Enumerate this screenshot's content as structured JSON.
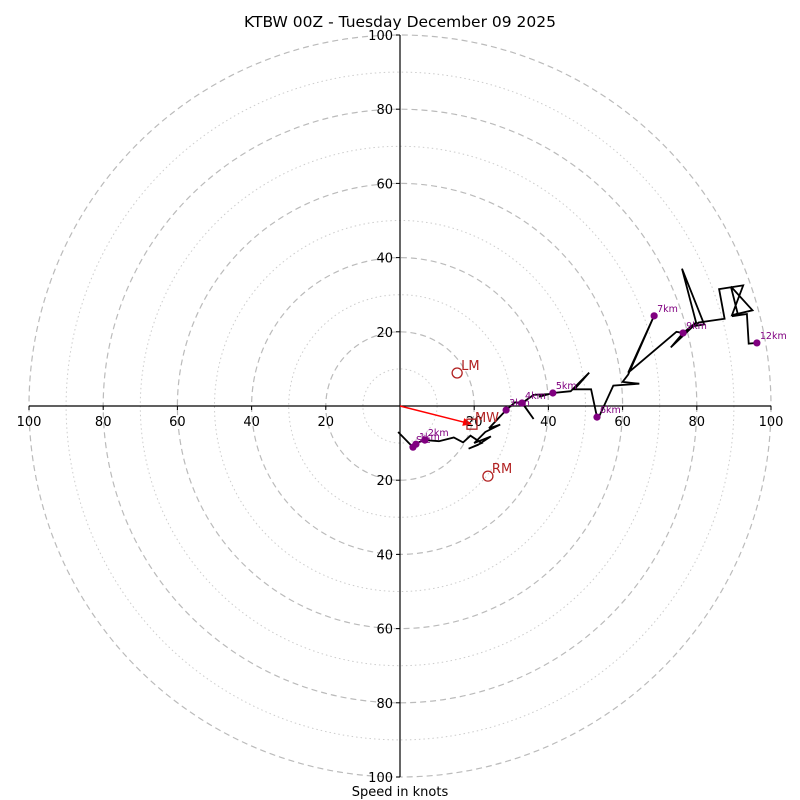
{
  "chart_data": {
    "type": "line",
    "subtype": "hodograph",
    "title": "KTBW 00Z - Tuesday December 09 2025",
    "xlabel": "Speed in knots",
    "ylabel": "",
    "axis_range": [
      -100,
      100
    ],
    "rings_dashed": [
      20,
      40,
      60,
      80,
      100
    ],
    "rings_dotted": [
      10,
      30,
      50,
      70,
      90
    ],
    "x_ticks": [
      {
        "value": -100,
        "label": "100"
      },
      {
        "value": -80,
        "label": "80"
      },
      {
        "value": -60,
        "label": "60"
      },
      {
        "value": -40,
        "label": "40"
      },
      {
        "value": -20,
        "label": "20"
      },
      {
        "value": 20,
        "label": "20"
      },
      {
        "value": 40,
        "label": "40"
      },
      {
        "value": 60,
        "label": "60"
      },
      {
        "value": 80,
        "label": "80"
      },
      {
        "value": 100,
        "label": "100"
      }
    ],
    "y_ticks": [
      {
        "value": 100,
        "label": "100"
      },
      {
        "value": 80,
        "label": "80"
      },
      {
        "value": 60,
        "label": "60"
      },
      {
        "value": 40,
        "label": "40"
      },
      {
        "value": 20,
        "label": "20"
      },
      {
        "value": -20,
        "label": "20"
      },
      {
        "value": -40,
        "label": "40"
      },
      {
        "value": -60,
        "label": "60"
      },
      {
        "value": -80,
        "label": "80"
      },
      {
        "value": -100,
        "label": "100"
      }
    ],
    "hodograph_line": {
      "color": "#000000",
      "u": [
        -0.5,
        3.5,
        4.3,
        6.7,
        10.5,
        14.5,
        17,
        19,
        22,
        18.5,
        21,
        24.5,
        20,
        23,
        27,
        24,
        28.6,
        31,
        33,
        36,
        32.9,
        36,
        40,
        37.5,
        41.2,
        46,
        51,
        47,
        51.5,
        53.1,
        53.5,
        57.5,
        64.5,
        60,
        61.5,
        68.5,
        61.5,
        62.5,
        74.5,
        76.3,
        73,
        79,
        82,
        76,
        79.8,
        76.3,
        80.5,
        87.5,
        86,
        92.5,
        89.5,
        95,
        89.2,
        91,
        89.5,
        93.5,
        94,
        96.2
      ],
      "v": [
        -7,
        -11.1,
        -10,
        -9.2,
        -9.5,
        -8.5,
        -9.8,
        -8,
        -10,
        -11.5,
        -10.5,
        -8.2,
        -10,
        -7,
        -5,
        -6,
        -1.1,
        1,
        0.8,
        -3.5,
        0.8,
        3,
        3.2,
        2.5,
        3.5,
        4,
        9,
        4.5,
        4.5,
        -3,
        -3.2,
        5.5,
        6,
        6.5,
        8.5,
        24.3,
        9,
        9.8,
        20,
        19.7,
        15.8,
        21.5,
        22,
        37,
        22.5,
        19.7,
        22.5,
        23.5,
        31.5,
        32.5,
        24.5,
        25.8,
        32.2,
        25,
        24.2,
        24.8,
        16.8,
        17
      ]
    },
    "height_markers": {
      "color": "#800080",
      "points": [
        {
          "label": "Sfc",
          "u": 3.5,
          "v": -11.1
        },
        {
          "label": "1km",
          "u": 4.3,
          "v": -10.3
        },
        {
          "label": "2km",
          "u": 6.7,
          "v": -9.2
        },
        {
          "label": "3km",
          "u": 28.6,
          "v": -1.1
        },
        {
          "label": "4km",
          "u": 32.9,
          "v": 0.8
        },
        {
          "label": "5km",
          "u": 41.2,
          "v": 3.5
        },
        {
          "label": "6km",
          "u": 53.1,
          "v": -3.0
        },
        {
          "label": "7km",
          "u": 68.5,
          "v": 24.3
        },
        {
          "label": "9km",
          "u": 76.3,
          "v": 19.7
        },
        {
          "label": "12km",
          "u": 96.2,
          "v": 17.0
        }
      ]
    },
    "storm_motion": {
      "color": "#b22222",
      "LM": {
        "label": "LM",
        "u": 15.4,
        "v": 8.9
      },
      "RM": {
        "label": "RM",
        "u": 23.7,
        "v": -18.9
      },
      "MW": {
        "label": "MW",
        "u": 19.4,
        "v": -4.9
      }
    },
    "shear_arrow": {
      "color": "#ff0000",
      "from_u": 0,
      "from_v": 0,
      "to_u": 19.4,
      "to_v": -4.9
    },
    "grid": true,
    "legend": "none"
  }
}
